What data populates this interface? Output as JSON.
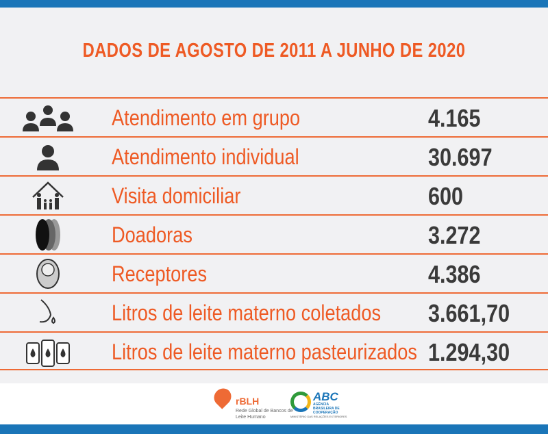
{
  "title": "DADOS DE AGOSTO DE 2011 A JUNHO DE 2020",
  "colors": {
    "accent": "#ee5a24",
    "bar": "#1a75b8",
    "value": "#3a3a3a"
  },
  "rows": [
    {
      "icon": "group-icon",
      "label": "Atendimento em grupo",
      "value": "4.165"
    },
    {
      "icon": "person-icon",
      "label": "Atendimento individual",
      "value": "30.697"
    },
    {
      "icon": "family-house-icon",
      "label": "Visita domiciliar",
      "value": "600"
    },
    {
      "icon": "pregnant-women-icon",
      "label": "Doadoras",
      "value": "3.272"
    },
    {
      "icon": "baby-icon",
      "label": "Receptores",
      "value": "4.386"
    },
    {
      "icon": "breast-milk-drop-icon",
      "label": "Litros de leite materno coletados",
      "value": "3.661,70"
    },
    {
      "icon": "milk-bottles-icon",
      "label": "Litros de leite materno pasteurizados",
      "value": "1.294,30"
    }
  ],
  "footer": {
    "rblh_name": "rBLH",
    "rblh_sub": "Rede Global de Bancos de Leite Humano",
    "abc_name": "ABC",
    "abc_sub": "AGÊNCIA BRASILEIRA DE COOPERAÇÃO",
    "abc_ministry": "MINISTÉRIO DAS RELAÇÕES EXTERIORES"
  }
}
